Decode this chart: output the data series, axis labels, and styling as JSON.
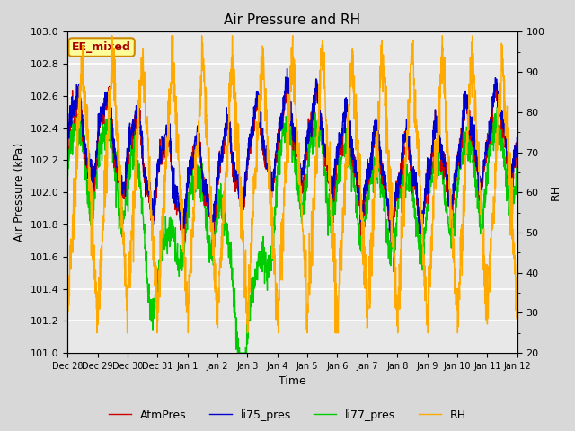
{
  "title": "Air Pressure and RH",
  "xlabel": "Time",
  "ylabel_left": "Air Pressure (kPa)",
  "ylabel_right": "RH",
  "ylim_left": [
    101.0,
    103.0
  ],
  "ylim_right": [
    20,
    100
  ],
  "yticks_left": [
    101.0,
    101.2,
    101.4,
    101.6,
    101.8,
    102.0,
    102.2,
    102.4,
    102.6,
    102.8,
    103.0
  ],
  "yticks_right": [
    20,
    30,
    40,
    50,
    60,
    70,
    80,
    90,
    100
  ],
  "xtick_labels": [
    "Dec 28",
    "Dec 29",
    "Dec 30",
    "Dec 31",
    "Jan 1",
    "Jan 2",
    "Jan 3",
    "Jan 4",
    "Jan 5",
    "Jan 6",
    "Jan 7",
    "Jan 8",
    "Jan 9",
    "Jan 10",
    "Jan 11",
    "Jan 12"
  ],
  "colors": {
    "AtmPres": "#cc0000",
    "li75_pres": "#0000cc",
    "li77_pres": "#00cc00",
    "RH": "#ffaa00"
  },
  "legend_label": "EE_mixed",
  "background_color": "#d8d8d8",
  "plot_bg": "#e8e8e8",
  "linewidth": 1.0,
  "title_fontsize": 11,
  "label_fontsize": 9,
  "tick_fontsize": 8,
  "xtick_fontsize": 7
}
